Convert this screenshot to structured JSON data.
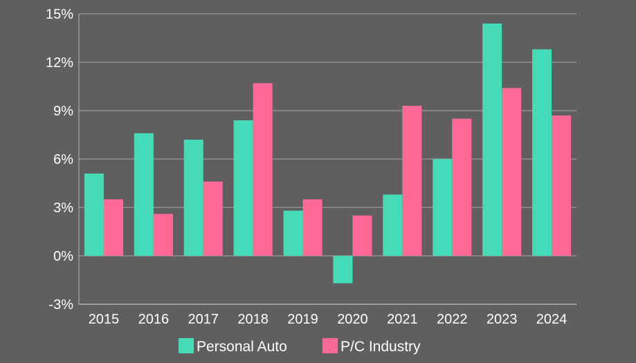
{
  "chart_data": {
    "type": "bar",
    "title": "",
    "xlabel": "",
    "ylabel": "",
    "categories": [
      "2015",
      "2016",
      "2017",
      "2018",
      "2019",
      "2020",
      "2021",
      "2022",
      "2023",
      "2024"
    ],
    "series": [
      {
        "name": "Personal Auto",
        "color": "#45dbb8",
        "values": [
          5.1,
          7.6,
          7.2,
          8.4,
          2.8,
          -1.7,
          3.8,
          6.0,
          14.4,
          12.8
        ]
      },
      {
        "name": "P/C Industry",
        "color": "#ff6b96",
        "values": [
          3.5,
          2.6,
          4.6,
          10.7,
          3.5,
          2.5,
          9.3,
          8.5,
          10.4,
          8.7
        ]
      }
    ],
    "ylim": [
      -3,
      15
    ],
    "yticks": [
      -3,
      0,
      3,
      6,
      9,
      12,
      15
    ],
    "ytick_labels": [
      "-3%",
      "0%",
      "3%",
      "6%",
      "9%",
      "12%",
      "15%"
    ],
    "grid": true,
    "legend_position": "bottom-center",
    "colors": {
      "background": "#5f5f5f",
      "grid": "#a9a9a9",
      "axis": "#b5b5b5",
      "text": "#ffffff"
    }
  }
}
